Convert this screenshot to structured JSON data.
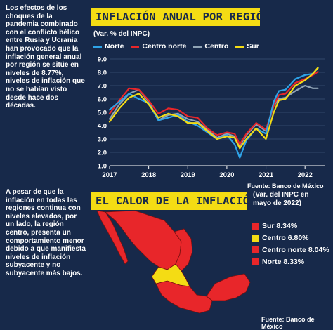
{
  "intro_text": "Los efectos de los choques de la pandemia combinado con el conflicto bélico entre Rusia y Ucrania han provocado que la inflación general anual por región se sitúe en niveles de 8.77%, niveles de inflación que no se habían visto desde hace dos décadas.",
  "second_text": "A pesar de que la inflación en todas las regiones continua con niveles elevados, por un lado, la región centro, presenta un comportamiento menor debido a que manifiesta niveles de inflación subyacente y no subyacente más bajos.",
  "chart_data": {
    "type": "line",
    "title": "INFLACIÓN ANUAL POR REGIÓN",
    "subtitle": "(Var. % del INPC)",
    "source": "Fuente: Banco de México",
    "ylim": [
      1,
      9
    ],
    "yticks": [
      1.0,
      2.0,
      3.0,
      4.0,
      5.0,
      6.0,
      7.0,
      8.0,
      9.0
    ],
    "xlim": [
      2017,
      2022.5
    ],
    "xticks": [
      "2017",
      "2018",
      "2019",
      "2020",
      "2021",
      "2022"
    ],
    "grid": true,
    "legend_position": "top",
    "series": [
      {
        "name": "Norte",
        "color": "#2ea3e8",
        "x": [
          2017.0,
          2017.25,
          2017.5,
          2017.75,
          2018.0,
          2018.25,
          2018.5,
          2018.75,
          2019.0,
          2019.25,
          2019.5,
          2019.75,
          2020.0,
          2020.2,
          2020.33,
          2020.5,
          2020.75,
          2021.0,
          2021.2,
          2021.33,
          2021.5,
          2021.75,
          2022.0,
          2022.2,
          2022.33
        ],
        "values": [
          5.2,
          5.8,
          6.4,
          6.0,
          5.7,
          4.4,
          4.6,
          4.8,
          4.3,
          4.0,
          3.5,
          3.0,
          3.3,
          2.6,
          1.6,
          2.9,
          3.8,
          3.4,
          5.8,
          6.6,
          6.7,
          7.5,
          7.8,
          7.9,
          8.3
        ]
      },
      {
        "name": "Centro norte",
        "color": "#e8262a",
        "x": [
          2017.0,
          2017.25,
          2017.5,
          2017.75,
          2018.0,
          2018.25,
          2018.5,
          2018.75,
          2019.0,
          2019.25,
          2019.5,
          2019.75,
          2020.0,
          2020.2,
          2020.33,
          2020.5,
          2020.75,
          2021.0,
          2021.2,
          2021.33,
          2021.5,
          2021.75,
          2022.0,
          2022.2,
          2022.33
        ],
        "values": [
          4.9,
          5.9,
          6.8,
          6.7,
          5.9,
          4.9,
          5.3,
          5.2,
          4.7,
          4.6,
          3.8,
          3.3,
          3.5,
          3.4,
          2.6,
          3.4,
          4.2,
          3.7,
          5.5,
          6.3,
          6.4,
          7.2,
          7.5,
          7.8,
          8.04
        ]
      },
      {
        "name": "Centro",
        "color": "#8fa3b5",
        "x": [
          2017.0,
          2017.25,
          2017.5,
          2017.75,
          2018.0,
          2018.25,
          2018.5,
          2018.75,
          2019.0,
          2019.25,
          2019.5,
          2019.75,
          2020.0,
          2020.2,
          2020.33,
          2020.5,
          2020.75,
          2021.0,
          2021.2,
          2021.33,
          2021.5,
          2021.75,
          2022.0,
          2022.2,
          2022.33
        ],
        "values": [
          4.5,
          5.6,
          6.4,
          6.7,
          5.8,
          4.4,
          4.8,
          4.9,
          4.5,
          4.3,
          3.7,
          3.1,
          3.4,
          3.2,
          2.5,
          3.3,
          4.1,
          3.6,
          5.5,
          6.0,
          6.1,
          6.6,
          7.0,
          6.8,
          6.8
        ]
      },
      {
        "name": "Sur",
        "color": "#f4dc14",
        "x": [
          2017.0,
          2017.25,
          2017.5,
          2017.75,
          2018.0,
          2018.25,
          2018.5,
          2018.75,
          2019.0,
          2019.25,
          2019.5,
          2019.75,
          2020.0,
          2020.2,
          2020.33,
          2020.5,
          2020.75,
          2021.0,
          2021.2,
          2021.33,
          2021.5,
          2021.75,
          2022.0,
          2022.2,
          2022.33
        ],
        "values": [
          4.3,
          5.3,
          6.1,
          6.4,
          5.6,
          4.6,
          4.9,
          4.7,
          4.2,
          4.2,
          3.6,
          3.0,
          3.2,
          3.1,
          2.3,
          3.0,
          3.8,
          3.0,
          5.0,
          5.9,
          6.0,
          7.0,
          7.4,
          7.9,
          8.34
        ]
      }
    ]
  },
  "map": {
    "title": "EL CALOR DE LA INFLACIÓN",
    "note": "(Var. del INPC en mayo de 2022)",
    "source": "Fuente: Banco de México",
    "legend": [
      {
        "label": "Sur 8.34%",
        "color": "#e8262a"
      },
      {
        "label": "Centro 6.80%",
        "color": "#f4dc14"
      },
      {
        "label": "Centro norte 8.04%",
        "color": "#e8262a"
      },
      {
        "label": "Norte 8.33%",
        "color": "#e8262a"
      }
    ],
    "region_colors": {
      "high": "#e8262a",
      "center": "#f4dc14",
      "border": "#7a1010"
    }
  }
}
